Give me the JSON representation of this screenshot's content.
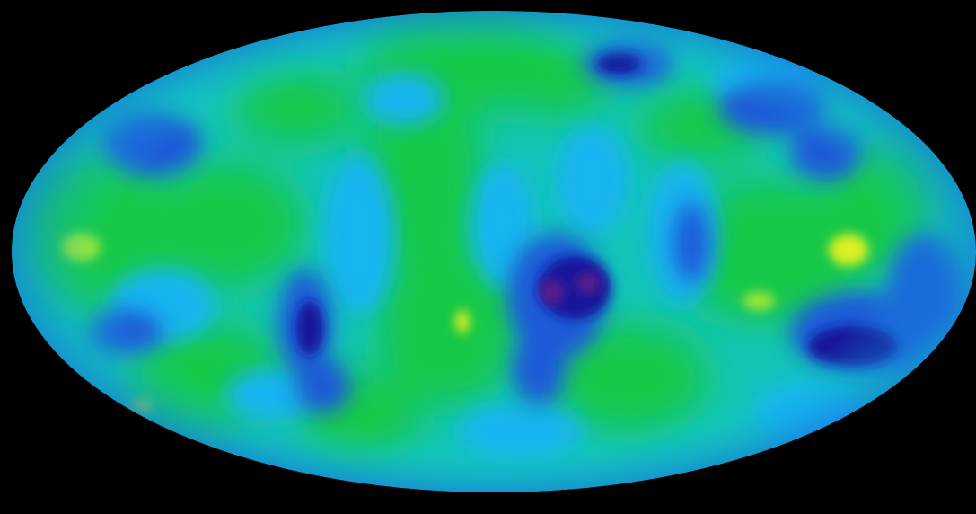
{
  "image": {
    "subject": "all-sky-map",
    "projection": "mollweide",
    "colormap": {
      "background": "#000000",
      "deep_blue": "#12199a",
      "mid_blue": "#1e5ad8",
      "light_blue": "#12b4f0",
      "cyan": "#0fd2dc",
      "green": "#14c846",
      "yellow_green": "#9ee632",
      "hot_spot": "#d9f020",
      "cold_spot": "#5a1e8c"
    }
  }
}
